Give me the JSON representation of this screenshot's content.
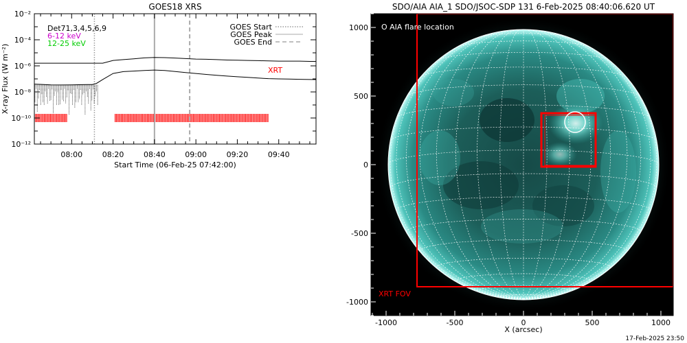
{
  "chart_data": [
    {
      "type": "line",
      "title": "GOES18 XRS",
      "xlabel": "Start Time (06-Feb-25 07:42:00)",
      "ylabel": "X-ray Flux (W m⁻²)",
      "x_range": [
        "07:42:00",
        "09:58:00"
      ],
      "ylim": [
        1e-12,
        0.01
      ],
      "yscale": "log",
      "x_ticks": [
        "08:00",
        "08:20",
        "08:40",
        "09:00",
        "09:20",
        "09:40"
      ],
      "y_ticks": [
        "10⁻¹²",
        "10⁻¹⁰",
        "10⁻⁸",
        "10⁻⁶",
        "10⁻⁴",
        "10⁻²"
      ],
      "y_tick_values": [
        1e-12,
        1e-10,
        1e-08,
        1e-06,
        0.0001,
        0.01
      ],
      "legend": {
        "det_label": "Det71,3,4,5,6,9",
        "low_label": "6-12 keV",
        "high_label": "12-25 keV",
        "placement": "top-left",
        "colors": {
          "det": "#000000",
          "low": "#cc00cc",
          "high": "#00cc00"
        }
      },
      "markers_legend": {
        "placement": "top-right",
        "start_label": "GOES Start",
        "peak_label": "GOES Peak",
        "end_label": "GOES End"
      },
      "markers": {
        "start": "08:11",
        "peak": "08:40",
        "end": "08:57"
      },
      "xrt_label": "XRT",
      "series": [
        {
          "color": "#000000",
          "x": [
            "07:42",
            "07:50",
            "07:55",
            "08:00",
            "08:05",
            "08:10",
            "08:15",
            "08:20",
            "08:25",
            "08:30",
            "08:35",
            "08:40",
            "08:45",
            "08:50",
            "08:55",
            "09:00",
            "09:05",
            "09:10",
            "09:15",
            "09:20",
            "09:25",
            "09:30",
            "09:35",
            "09:40",
            "09:45",
            "09:50",
            "09:55",
            "09:58"
          ],
          "values": [
            1.6e-06,
            1.6e-06,
            1.6e-06,
            1.6e-06,
            1.6e-06,
            1.6e-06,
            1.6e-06,
            2.6e-06,
            3e-06,
            3.5e-06,
            4.1e-06,
            4.4e-06,
            4.3e-06,
            4e-06,
            3.6e-06,
            3.3e-06,
            3.2e-06,
            3e-06,
            2.8e-06,
            2.7e-06,
            2.6e-06,
            2.5e-06,
            2.4e-06,
            2.3e-06,
            2.3e-06,
            2.3e-06,
            2.2e-06,
            2.2e-06
          ]
        },
        {
          "color": "#000000",
          "x": [
            "07:42",
            "07:45",
            "07:50",
            "07:55",
            "08:00",
            "08:05",
            "08:10",
            "08:12",
            "08:15",
            "08:20",
            "08:25",
            "08:30",
            "08:35",
            "08:40",
            "08:45",
            "08:50",
            "08:55",
            "09:00",
            "09:05",
            "09:10",
            "09:15",
            "09:20",
            "09:25",
            "09:30",
            "09:35",
            "09:40",
            "09:45",
            "09:50",
            "09:55",
            "09:58"
          ],
          "values": [
            4e-08,
            3.8e-08,
            3.5e-08,
            3.4e-08,
            3.5e-08,
            3.6e-08,
            3.7e-08,
            4.5e-08,
            9e-08,
            2.6e-07,
            3.6e-07,
            4e-07,
            4.4e-07,
            4.8e-07,
            4.4e-07,
            3.7e-07,
            3.1e-07,
            2.6e-07,
            2.2e-07,
            1.9e-07,
            1.65e-07,
            1.45e-07,
            1.3e-07,
            1.15e-07,
            1.05e-07,
            1e-07,
            9.6e-08,
            9.3e-08,
            9e-08,
            8.9e-08
          ]
        }
      ],
      "xrt_coverage": [
        [
          "07:42",
          "07:58"
        ],
        [
          "08:21",
          "09:35"
        ]
      ]
    },
    {
      "type": "image",
      "title": "SDO/AIA AIA_1 SDO/JSOC-SDP 131  6-Feb-2025 08:40:06.620 UT",
      "xlabel": "X (arcsec)",
      "x_ticks": [
        -1000,
        -500,
        0,
        500,
        1000
      ],
      "y_ticks": [
        1000,
        500,
        0,
        -500,
        -1000
      ],
      "x_range": [
        -1000,
        1000
      ],
      "y_range": [
        -1000,
        1000
      ],
      "flare_legend": "O AIA flare location",
      "fov_label": "XRT FOV",
      "colors": {
        "sun": "#2fa8a0",
        "fov": "#ff0000",
        "grid": "#ffffff"
      }
    }
  ],
  "footer_timestamp": "17-Feb-2025 23:50"
}
